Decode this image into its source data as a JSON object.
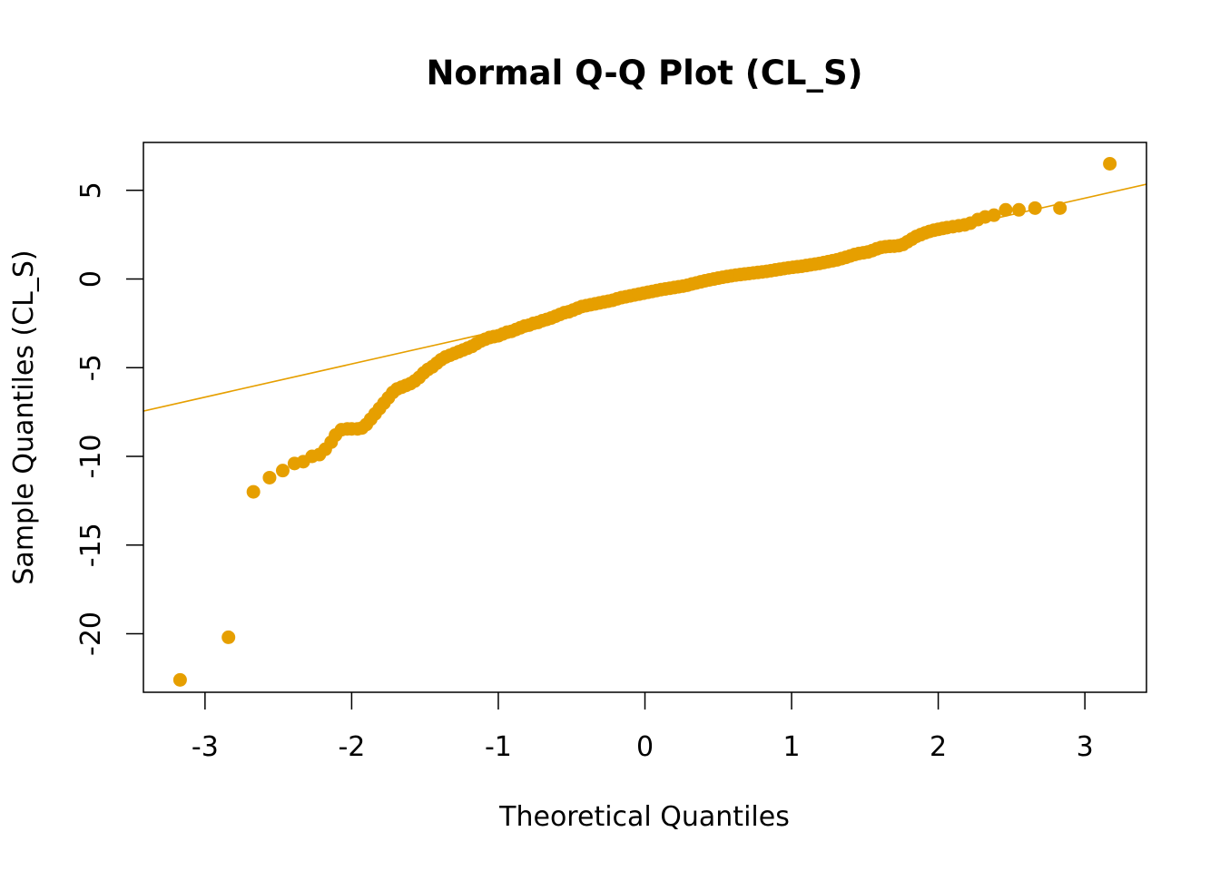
{
  "chart_data": {
    "type": "scatter",
    "title": "Normal Q-Q Plot (CL_S)",
    "xlabel": "Theoretical Quantiles",
    "ylabel": "Sample Quantiles (CL_S)",
    "xlim": [
      -3.42,
      3.42
    ],
    "ylim": [
      -23.3,
      7.7
    ],
    "x_ticks": [
      -3,
      -2,
      -1,
      0,
      1,
      2,
      3
    ],
    "y_ticks": [
      -20,
      -15,
      -10,
      -5,
      0,
      5
    ],
    "x_tick_labels": [
      "-3",
      "-2",
      "-1",
      "0",
      "1",
      "2",
      "3"
    ],
    "y_tick_labels": [
      "-20",
      "-15",
      "-10",
      "-5",
      "0",
      "5"
    ],
    "point_color": "#E69F00",
    "line_color": "#E69F00",
    "reference_line": {
      "intercept": -1.05,
      "slope": 1.87
    },
    "points": [
      [
        -3.17,
        -22.6
      ],
      [
        -2.84,
        -20.2
      ],
      [
        -2.67,
        -12.0
      ],
      [
        -2.56,
        -11.2
      ],
      [
        -2.47,
        -10.8
      ],
      [
        -2.39,
        -10.4
      ],
      [
        -2.33,
        -10.3
      ],
      [
        -2.27,
        -10.0
      ],
      [
        -2.22,
        -9.9
      ],
      [
        -2.18,
        -9.6
      ],
      [
        -2.14,
        -9.2
      ],
      [
        -2.11,
        -8.8
      ],
      [
        -2.07,
        -8.5
      ],
      [
        -2.03,
        -8.45
      ],
      [
        -2.0,
        -8.45
      ],
      [
        -1.96,
        -8.45
      ],
      [
        -1.93,
        -8.4
      ],
      [
        -1.9,
        -8.2
      ],
      [
        -1.87,
        -7.9
      ],
      [
        -1.84,
        -7.6
      ],
      [
        -1.81,
        -7.3
      ],
      [
        -1.78,
        -7.0
      ],
      [
        -1.75,
        -6.7
      ],
      [
        -1.72,
        -6.4
      ],
      [
        -1.69,
        -6.2
      ],
      [
        -1.66,
        -6.1
      ],
      [
        -1.63,
        -6.0
      ],
      [
        -1.6,
        -5.9
      ],
      [
        -1.57,
        -5.75
      ],
      [
        -1.54,
        -5.55
      ],
      [
        -1.51,
        -5.3
      ],
      [
        -1.48,
        -5.1
      ],
      [
        -1.45,
        -4.95
      ],
      [
        -1.42,
        -4.75
      ],
      [
        -1.39,
        -4.55
      ],
      [
        -1.36,
        -4.4
      ],
      [
        -1.33,
        -4.3
      ],
      [
        -1.3,
        -4.2
      ],
      [
        -1.27,
        -4.1
      ],
      [
        -1.24,
        -4.0
      ],
      [
        -1.21,
        -3.9
      ],
      [
        -1.18,
        -3.8
      ],
      [
        -1.15,
        -3.65
      ],
      [
        -1.12,
        -3.5
      ],
      [
        -1.09,
        -3.4
      ],
      [
        -1.06,
        -3.3
      ],
      [
        -1.03,
        -3.25
      ],
      [
        -1.0,
        -3.2
      ],
      [
        -0.97,
        -3.1
      ],
      [
        -0.94,
        -3.0
      ],
      [
        -0.91,
        -2.95
      ],
      [
        -0.88,
        -2.85
      ],
      [
        -0.85,
        -2.75
      ],
      [
        -0.82,
        -2.65
      ],
      [
        -0.79,
        -2.6
      ],
      [
        -0.76,
        -2.5
      ],
      [
        -0.73,
        -2.45
      ],
      [
        -0.7,
        -2.35
      ],
      [
        -0.67,
        -2.28
      ],
      [
        -0.64,
        -2.2
      ],
      [
        -0.61,
        -2.1
      ],
      [
        -0.58,
        -2.0
      ],
      [
        -0.55,
        -1.9
      ],
      [
        -0.52,
        -1.85
      ],
      [
        -0.49,
        -1.75
      ],
      [
        -0.46,
        -1.65
      ],
      [
        -0.43,
        -1.55
      ],
      [
        -0.4,
        -1.5
      ],
      [
        -0.37,
        -1.45
      ],
      [
        -0.34,
        -1.4
      ],
      [
        -0.31,
        -1.35
      ],
      [
        -0.28,
        -1.3
      ],
      [
        -0.25,
        -1.25
      ],
      [
        -0.22,
        -1.2
      ],
      [
        -0.19,
        -1.12
      ],
      [
        -0.16,
        -1.05
      ],
      [
        -0.13,
        -1.0
      ],
      [
        -0.1,
        -0.95
      ],
      [
        -0.07,
        -0.9
      ],
      [
        -0.04,
        -0.85
      ],
      [
        -0.01,
        -0.8
      ],
      [
        0.02,
        -0.75
      ],
      [
        0.05,
        -0.7
      ],
      [
        0.08,
        -0.65
      ],
      [
        0.11,
        -0.6
      ],
      [
        0.14,
        -0.56
      ],
      [
        0.17,
        -0.52
      ],
      [
        0.2,
        -0.48
      ],
      [
        0.23,
        -0.44
      ],
      [
        0.26,
        -0.4
      ],
      [
        0.29,
        -0.35
      ],
      [
        0.32,
        -0.28
      ],
      [
        0.35,
        -0.22
      ],
      [
        0.38,
        -0.16
      ],
      [
        0.41,
        -0.1
      ],
      [
        0.44,
        -0.05
      ],
      [
        0.47,
        0.0
      ],
      [
        0.5,
        0.05
      ],
      [
        0.53,
        0.1
      ],
      [
        0.56,
        0.14
      ],
      [
        0.59,
        0.18
      ],
      [
        0.62,
        0.22
      ],
      [
        0.65,
        0.25
      ],
      [
        0.68,
        0.28
      ],
      [
        0.71,
        0.31
      ],
      [
        0.74,
        0.34
      ],
      [
        0.77,
        0.37
      ],
      [
        0.8,
        0.4
      ],
      [
        0.83,
        0.43
      ],
      [
        0.86,
        0.47
      ],
      [
        0.89,
        0.51
      ],
      [
        0.92,
        0.55
      ],
      [
        0.95,
        0.59
      ],
      [
        0.98,
        0.63
      ],
      [
        1.01,
        0.66
      ],
      [
        1.04,
        0.69
      ],
      [
        1.07,
        0.72
      ],
      [
        1.1,
        0.76
      ],
      [
        1.13,
        0.8
      ],
      [
        1.16,
        0.84
      ],
      [
        1.19,
        0.88
      ],
      [
        1.22,
        0.93
      ],
      [
        1.25,
        0.98
      ],
      [
        1.28,
        1.03
      ],
      [
        1.31,
        1.08
      ],
      [
        1.34,
        1.15
      ],
      [
        1.37,
        1.22
      ],
      [
        1.4,
        1.3
      ],
      [
        1.43,
        1.38
      ],
      [
        1.46,
        1.44
      ],
      [
        1.49,
        1.48
      ],
      [
        1.52,
        1.52
      ],
      [
        1.55,
        1.6
      ],
      [
        1.58,
        1.7
      ],
      [
        1.61,
        1.78
      ],
      [
        1.64,
        1.82
      ],
      [
        1.67,
        1.84
      ],
      [
        1.7,
        1.85
      ],
      [
        1.73,
        1.88
      ],
      [
        1.76,
        1.95
      ],
      [
        1.79,
        2.1
      ],
      [
        1.82,
        2.25
      ],
      [
        1.85,
        2.4
      ],
      [
        1.88,
        2.5
      ],
      [
        1.91,
        2.6
      ],
      [
        1.94,
        2.68
      ],
      [
        1.97,
        2.75
      ],
      [
        2.0,
        2.8
      ],
      [
        2.03,
        2.85
      ],
      [
        2.06,
        2.9
      ],
      [
        2.1,
        2.95
      ],
      [
        2.14,
        3.0
      ],
      [
        2.18,
        3.05
      ],
      [
        2.22,
        3.15
      ],
      [
        2.27,
        3.35
      ],
      [
        2.32,
        3.5
      ],
      [
        2.38,
        3.6
      ],
      [
        2.46,
        3.9
      ],
      [
        2.55,
        3.9
      ],
      [
        2.66,
        4.0
      ],
      [
        2.83,
        4.0
      ],
      [
        3.17,
        6.5
      ]
    ]
  }
}
